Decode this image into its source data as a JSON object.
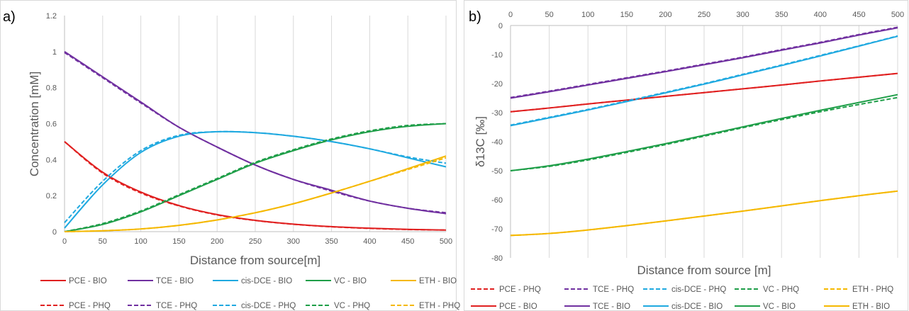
{
  "colors": {
    "PCE": "#E02020",
    "TCE": "#7030A0",
    "cis-DCE": "#1FA9E0",
    "VC": "#1E9E48",
    "ETH": "#F5B800"
  },
  "chart_data": [
    {
      "panel": "a)",
      "type": "line",
      "xlabel": "Distance from source[m]",
      "ylabel": "Concentration [mM]",
      "xlim": [
        0,
        500
      ],
      "ylim": [
        0,
        1.2
      ],
      "x_ticks": [
        0,
        50,
        100,
        150,
        200,
        250,
        300,
        350,
        400,
        450,
        500
      ],
      "y_ticks": [
        "0",
        "0.2",
        "0.4",
        "0.6",
        "0.8",
        "1",
        "1.2"
      ],
      "x_axis_position": "bottom",
      "grid": "vertical",
      "legend_position": "bottom",
      "x": [
        0,
        50,
        100,
        150,
        200,
        250,
        300,
        350,
        400,
        450,
        500
      ],
      "series": [
        {
          "name": "PCE - BIO",
          "species": "PCE",
          "style": "solid",
          "values": [
            0.5,
            0.33,
            0.22,
            0.145,
            0.095,
            0.063,
            0.042,
            0.028,
            0.019,
            0.013,
            0.009
          ]
        },
        {
          "name": "TCE - BIO",
          "species": "TCE",
          "style": "solid",
          "values": [
            1.0,
            0.86,
            0.72,
            0.58,
            0.47,
            0.37,
            0.29,
            0.23,
            0.17,
            0.13,
            0.1
          ]
        },
        {
          "name": "cis-DCE - BIO",
          "species": "cis-DCE",
          "style": "solid",
          "values": [
            0.02,
            0.26,
            0.44,
            0.53,
            0.555,
            0.55,
            0.53,
            0.5,
            0.46,
            0.41,
            0.36
          ]
        },
        {
          "name": "VC - BIO",
          "species": "VC",
          "style": "solid",
          "values": [
            0.0,
            0.04,
            0.11,
            0.2,
            0.29,
            0.38,
            0.45,
            0.51,
            0.555,
            0.585,
            0.6
          ]
        },
        {
          "name": "ETH - BIO",
          "species": "ETH",
          "style": "solid",
          "values": [
            0.0,
            0.005,
            0.015,
            0.035,
            0.065,
            0.105,
            0.155,
            0.215,
            0.28,
            0.35,
            0.42
          ]
        },
        {
          "name": "PCE - PHQ",
          "species": "PCE",
          "style": "dashed",
          "values": [
            0.5,
            0.325,
            0.215,
            0.143,
            0.093,
            0.062,
            0.041,
            0.027,
            0.018,
            0.012,
            0.009
          ]
        },
        {
          "name": "TCE - PHQ",
          "species": "TCE",
          "style": "dashed",
          "values": [
            0.995,
            0.855,
            0.715,
            0.58,
            0.47,
            0.37,
            0.29,
            0.225,
            0.17,
            0.13,
            0.105
          ]
        },
        {
          "name": "cis-DCE - PHQ",
          "species": "cis-DCE",
          "style": "dashed",
          "values": [
            0.05,
            0.28,
            0.45,
            0.535,
            0.555,
            0.55,
            0.53,
            0.5,
            0.46,
            0.415,
            0.38
          ]
        },
        {
          "name": "VC - PHQ",
          "species": "VC",
          "style": "dashed",
          "values": [
            0.0,
            0.045,
            0.115,
            0.205,
            0.295,
            0.385,
            0.455,
            0.515,
            0.56,
            0.59,
            0.6
          ]
        },
        {
          "name": "ETH - PHQ",
          "species": "ETH",
          "style": "dashed",
          "values": [
            0.0,
            0.005,
            0.015,
            0.035,
            0.065,
            0.105,
            0.155,
            0.215,
            0.28,
            0.345,
            0.41
          ]
        }
      ]
    },
    {
      "panel": "b)",
      "type": "line",
      "xlabel": "Distance from source [m]",
      "ylabel": "δ13C [‰]",
      "xlim": [
        0,
        500
      ],
      "ylim": [
        -80,
        0
      ],
      "x_ticks": [
        0,
        50,
        100,
        150,
        200,
        250,
        300,
        350,
        400,
        450,
        500
      ],
      "y_ticks": [
        "0",
        "-10",
        "-20",
        "-30",
        "-40",
        "-50",
        "-60",
        "-70",
        "-80"
      ],
      "x_axis_position": "top",
      "grid": "vertical",
      "legend_position": "bottom",
      "x": [
        0,
        50,
        100,
        150,
        200,
        250,
        300,
        350,
        400,
        450,
        500
      ],
      "series": [
        {
          "name": "PCE - PHQ",
          "species": "PCE",
          "style": "dashed",
          "values": [
            -29.7,
            -28.4,
            -27.0,
            -25.7,
            -24.4,
            -23.1,
            -21.8,
            -20.5,
            -19.1,
            -17.8,
            -16.5
          ]
        },
        {
          "name": "TCE - PHQ",
          "species": "TCE",
          "style": "dashed",
          "values": [
            -24.8,
            -22.6,
            -20.3,
            -18.0,
            -15.7,
            -13.3,
            -10.9,
            -8.3,
            -5.8,
            -3.1,
            -0.6
          ]
        },
        {
          "name": "cis-DCE - PHQ",
          "species": "cis-DCE",
          "style": "dashed",
          "values": [
            -34.3,
            -31.6,
            -28.9,
            -26.0,
            -23.0,
            -20.0,
            -16.8,
            -13.6,
            -10.3,
            -7.0,
            -3.6
          ]
        },
        {
          "name": "VC - PHQ",
          "species": "VC",
          "style": "dashed",
          "values": [
            -50.0,
            -48.5,
            -46.3,
            -43.7,
            -41.0,
            -38.1,
            -35.2,
            -32.4,
            -29.7,
            -27.2,
            -24.8
          ]
        },
        {
          "name": "ETH - PHQ",
          "species": "ETH",
          "style": "dashed",
          "values": [
            -72.3,
            -71.6,
            -70.4,
            -68.9,
            -67.3,
            -65.6,
            -63.9,
            -62.1,
            -60.3,
            -58.6,
            -57.0
          ]
        },
        {
          "name": "PCE - BIO",
          "species": "PCE",
          "style": "solid",
          "values": [
            -29.7,
            -28.4,
            -27.0,
            -25.7,
            -24.4,
            -23.1,
            -21.8,
            -20.5,
            -19.1,
            -17.8,
            -16.5
          ]
        },
        {
          "name": "TCE - BIO",
          "species": "TCE",
          "style": "solid",
          "values": [
            -25.0,
            -22.8,
            -20.5,
            -18.2,
            -15.9,
            -13.5,
            -11.1,
            -8.5,
            -6.0,
            -3.3,
            -0.8
          ]
        },
        {
          "name": "cis-DCE - BIO",
          "species": "cis-DCE",
          "style": "solid",
          "values": [
            -34.5,
            -31.8,
            -29.1,
            -26.2,
            -23.2,
            -20.2,
            -17.0,
            -13.8,
            -10.5,
            -7.1,
            -3.7
          ]
        },
        {
          "name": "VC - BIO",
          "species": "VC",
          "style": "solid",
          "values": [
            -50.0,
            -48.3,
            -46.0,
            -43.4,
            -40.7,
            -37.8,
            -34.9,
            -32.0,
            -29.2,
            -26.5,
            -23.8
          ]
        },
        {
          "name": "ETH - BIO",
          "species": "ETH",
          "style": "solid",
          "values": [
            -72.3,
            -71.6,
            -70.4,
            -68.9,
            -67.3,
            -65.6,
            -63.9,
            -62.1,
            -60.3,
            -58.6,
            -57.0
          ]
        }
      ]
    }
  ]
}
